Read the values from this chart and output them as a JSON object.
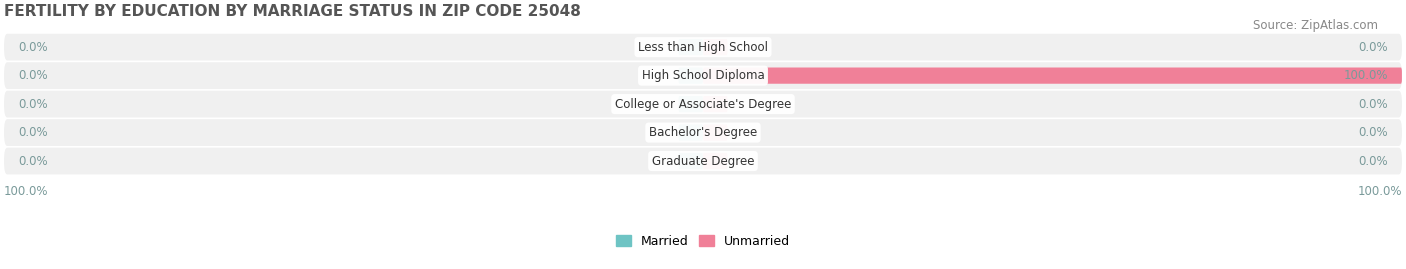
{
  "title": "FERTILITY BY EDUCATION BY MARRIAGE STATUS IN ZIP CODE 25048",
  "source": "Source: ZipAtlas.com",
  "categories": [
    "Less than High School",
    "High School Diploma",
    "College or Associate's Degree",
    "Bachelor's Degree",
    "Graduate Degree"
  ],
  "married_values": [
    0.0,
    0.0,
    0.0,
    0.0,
    0.0
  ],
  "unmarried_values": [
    0.0,
    100.0,
    0.0,
    0.0,
    0.0
  ],
  "married_color": "#6ec4c4",
  "unmarried_color": "#f08098",
  "bar_bg_color": "#e8e8e8",
  "row_bg_color": "#f0f0f0",
  "xlim": [
    -100,
    100
  ],
  "title_fontsize": 11,
  "source_fontsize": 8.5,
  "label_fontsize": 8.5,
  "category_fontsize": 8.5,
  "legend_fontsize": 9,
  "value_label_color": "#7a9a9a",
  "bg_color": "#ffffff"
}
